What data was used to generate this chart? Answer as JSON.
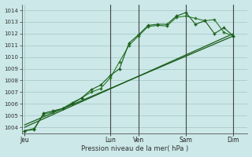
{
  "xlabel": "Pression niveau de la mer( hPa )",
  "background_color": "#cce8e8",
  "grid_color": "#aacccc",
  "line_color_dark": "#1a5c1a",
  "line_color_medium": "#2a7a2a",
  "ylim": [
    1003.5,
    1014.5
  ],
  "yticks": [
    1004,
    1005,
    1006,
    1007,
    1008,
    1009,
    1010,
    1011,
    1012,
    1013,
    1014
  ],
  "day_labels": [
    "Jeu",
    "Lun",
    "Ven",
    "Sam",
    "Dim"
  ],
  "day_positions": [
    0,
    9,
    12,
    17,
    22
  ],
  "xlim": [
    -0.3,
    23.5
  ],
  "series1_x": [
    0,
    1,
    2,
    3,
    4,
    5,
    6,
    7,
    8,
    9,
    10,
    11,
    12,
    13,
    14,
    15,
    16,
    17,
    18,
    19,
    20,
    21,
    22
  ],
  "series1_y": [
    1003.7,
    1003.8,
    1005.2,
    1005.4,
    1005.6,
    1006.0,
    1006.5,
    1007.2,
    1007.6,
    1008.4,
    1009.0,
    1011.2,
    1011.9,
    1012.7,
    1012.8,
    1012.8,
    1013.5,
    1013.8,
    1012.8,
    1013.1,
    1012.0,
    1012.5,
    1011.8
  ],
  "series2_x": [
    0,
    1,
    2,
    3,
    4,
    5,
    6,
    7,
    8,
    9,
    10,
    11,
    12,
    13,
    14,
    15,
    16,
    17,
    18,
    19,
    20,
    21,
    22
  ],
  "series2_y": [
    1003.7,
    1003.9,
    1005.1,
    1005.3,
    1005.6,
    1006.1,
    1006.5,
    1007.0,
    1007.3,
    1008.2,
    1009.6,
    1011.0,
    1011.8,
    1012.6,
    1012.7,
    1012.65,
    1013.4,
    1013.5,
    1013.3,
    1013.1,
    1013.2,
    1012.1,
    1011.8
  ],
  "series3_x": [
    0,
    22
  ],
  "series3_y": [
    1004.0,
    1012.0
  ],
  "series4_x": [
    0,
    22
  ],
  "series4_y": [
    1004.2,
    1011.8
  ],
  "vline_positions": [
    9,
    12,
    17,
    22
  ],
  "vline_color": "#444444"
}
